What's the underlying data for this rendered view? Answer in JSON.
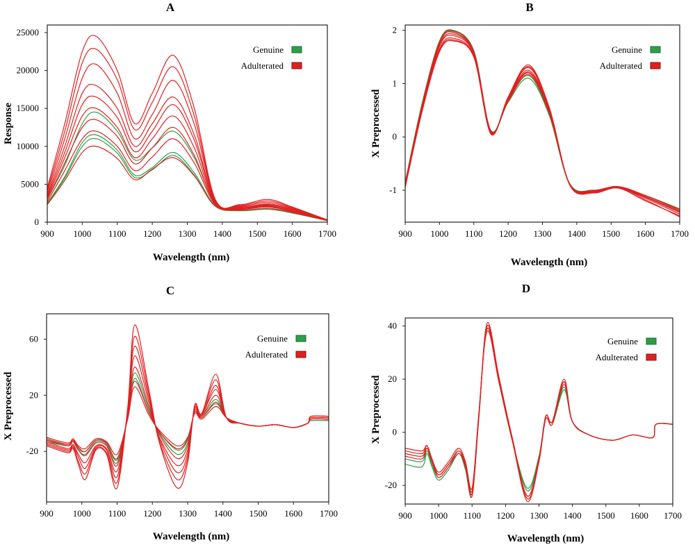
{
  "colors": {
    "genuine": "#2e9e48",
    "adulterated": "#e02020",
    "frame": "#222222"
  },
  "legend_labels": {
    "genuine": "Genuine",
    "adulterated": "Adulterated"
  },
  "chart_data": [
    {
      "panel": "A",
      "type": "line",
      "xlabel": "Wavelength (nm)",
      "ylabel": "Response",
      "xlim": [
        900,
        1700
      ],
      "ylim": [
        0,
        26000
      ],
      "x_ticks": [
        900,
        1000,
        1100,
        1200,
        1300,
        1400,
        1500,
        1600,
        1700
      ],
      "y_ticks": [
        0,
        5000,
        10000,
        15000,
        20000,
        25000
      ],
      "grid": false,
      "legend_position": "top-right",
      "x": [
        900,
        950,
        1000,
        1040,
        1100,
        1150,
        1200,
        1260,
        1320,
        1380,
        1450,
        1530,
        1600,
        1700
      ],
      "series": [
        {
          "name": "Genuine",
          "values": [
            2500,
            6000,
            10500,
            11500,
            9500,
            6200,
            7200,
            9200,
            6500,
            2200,
            1600,
            1800,
            1300,
            200
          ]
        },
        {
          "name": "Genuine",
          "values": [
            3000,
            7500,
            13000,
            14500,
            12000,
            8200,
            9800,
            12000,
            8500,
            2500,
            1800,
            2000,
            1400,
            200
          ]
        },
        {
          "name": "Genuine",
          "values": [
            2400,
            5800,
            10000,
            11000,
            9100,
            5900,
            6900,
            8800,
            6200,
            2100,
            1500,
            1700,
            1200,
            200
          ]
        },
        {
          "name": "Adulterated",
          "values": [
            4500,
            13000,
            22500,
            24500,
            20000,
            13000,
            17000,
            22000,
            15000,
            3000,
            2300,
            3000,
            2000,
            300
          ]
        },
        {
          "name": "Adulterated",
          "values": [
            4200,
            12000,
            21000,
            22800,
            18800,
            12200,
            15800,
            20500,
            14000,
            2900,
            2200,
            2800,
            1900,
            300
          ]
        },
        {
          "name": "Adulterated",
          "values": [
            3900,
            11000,
            19000,
            20800,
            17000,
            11000,
            14200,
            18700,
            12900,
            2800,
            2100,
            2600,
            1800,
            300
          ]
        },
        {
          "name": "Adulterated",
          "values": [
            3600,
            10000,
            17000,
            18000,
            15000,
            10000,
            13000,
            16500,
            11500,
            2700,
            2000,
            2400,
            1700,
            250
          ]
        },
        {
          "name": "Adulterated",
          "values": [
            3400,
            9200,
            15500,
            16500,
            13800,
            9300,
            12000,
            15500,
            10800,
            2600,
            1900,
            2300,
            1600,
            250
          ]
        },
        {
          "name": "Adulterated",
          "values": [
            3200,
            8500,
            14000,
            15000,
            12500,
            8500,
            11000,
            14000,
            9800,
            2500,
            1900,
            2200,
            1500,
            250
          ]
        },
        {
          "name": "Adulterated",
          "values": [
            3000,
            7800,
            12500,
            13500,
            11300,
            7700,
            9800,
            12500,
            8800,
            2400,
            1800,
            2100,
            1400,
            200
          ]
        },
        {
          "name": "Adulterated",
          "values": [
            2700,
            6800,
            11000,
            12000,
            10000,
            6800,
            8600,
            11000,
            7800,
            2300,
            1700,
            2000,
            1400,
            200
          ]
        },
        {
          "name": "Adulterated",
          "values": [
            2300,
            5500,
            9200,
            10000,
            8400,
            5600,
            7000,
            8500,
            6100,
            2100,
            1600,
            1800,
            1300,
            200
          ]
        }
      ]
    },
    {
      "panel": "B",
      "type": "line",
      "xlabel": "Wavelength (nm)",
      "ylabel": "X Preprocessed",
      "xlim": [
        900,
        1700
      ],
      "ylim": [
        -1.6,
        2.1
      ],
      "x_ticks": [
        900,
        1000,
        1100,
        1200,
        1300,
        1400,
        1500,
        1600,
        1700
      ],
      "y_ticks": [
        -1,
        0,
        1,
        2
      ],
      "grid": false,
      "legend_position": "top-right",
      "x": [
        900,
        950,
        1000,
        1040,
        1100,
        1150,
        1200,
        1260,
        1320,
        1380,
        1450,
        1520,
        1600,
        1700
      ],
      "series": [
        {
          "name": "Genuine",
          "values": [
            -0.9,
            0.6,
            1.75,
            1.98,
            1.6,
            0.1,
            0.65,
            1.1,
            0.4,
            -0.9,
            -1.02,
            -0.95,
            -1.1,
            -1.35
          ]
        },
        {
          "name": "Genuine",
          "values": [
            -0.85,
            0.65,
            1.8,
            2.0,
            1.62,
            0.12,
            0.68,
            1.15,
            0.42,
            -0.88,
            -1.0,
            -0.96,
            -1.12,
            -1.4
          ]
        },
        {
          "name": "Adulterated",
          "values": [
            -0.95,
            0.5,
            1.6,
            1.8,
            1.5,
            0.05,
            0.75,
            1.35,
            0.55,
            -0.9,
            -1.05,
            -0.95,
            -1.18,
            -1.5
          ]
        },
        {
          "name": "Adulterated",
          "values": [
            -0.92,
            0.52,
            1.65,
            1.85,
            1.52,
            0.07,
            0.73,
            1.3,
            0.52,
            -0.9,
            -1.04,
            -0.95,
            -1.15,
            -1.45
          ]
        },
        {
          "name": "Adulterated",
          "values": [
            -0.9,
            0.55,
            1.7,
            1.9,
            1.55,
            0.08,
            0.72,
            1.25,
            0.5,
            -0.9,
            -1.03,
            -0.95,
            -1.13,
            -1.42
          ]
        },
        {
          "name": "Adulterated",
          "values": [
            -0.9,
            0.58,
            1.72,
            1.93,
            1.57,
            0.09,
            0.7,
            1.22,
            0.48,
            -0.9,
            -1.02,
            -0.94,
            -1.12,
            -1.4
          ]
        },
        {
          "name": "Adulterated",
          "values": [
            -0.88,
            0.6,
            1.76,
            1.96,
            1.58,
            0.1,
            0.69,
            1.2,
            0.46,
            -0.9,
            -1.01,
            -0.94,
            -1.1,
            -1.38
          ]
        },
        {
          "name": "Adulterated",
          "values": [
            -0.87,
            0.62,
            1.78,
            1.99,
            1.6,
            0.11,
            0.67,
            1.17,
            0.44,
            -0.89,
            -1.0,
            -0.93,
            -1.1,
            -1.36
          ]
        },
        {
          "name": "Adulterated",
          "values": [
            -0.94,
            0.5,
            1.62,
            1.82,
            1.5,
            0.06,
            0.74,
            1.32,
            0.54,
            -0.91,
            -1.05,
            -0.96,
            -1.2,
            -1.48
          ]
        }
      ]
    },
    {
      "panel": "C",
      "type": "line",
      "xlabel": "Wavelength (nm)",
      "ylabel": "X Preprocessed",
      "xlim": [
        900,
        1700
      ],
      "ylim": [
        -56,
        78
      ],
      "x_ticks": [
        900,
        1000,
        1100,
        1200,
        1300,
        1400,
        1500,
        1600,
        1700
      ],
      "y_ticks": [
        -20,
        20,
        60
      ],
      "grid": false,
      "legend_position": "top-right",
      "x": [
        900,
        960,
        975,
        990,
        1010,
        1040,
        1070,
        1100,
        1130,
        1150,
        1190,
        1220,
        1270,
        1300,
        1320,
        1340,
        1380,
        1410,
        1450,
        1500,
        1550,
        1600,
        1640,
        1650,
        1700
      ],
      "series": [
        {
          "name": "Genuine",
          "values": [
            -12,
            -15,
            -12,
            -18,
            -20,
            -12,
            -14,
            -26,
            4,
            32,
            8,
            -6,
            -19,
            -12,
            8,
            4,
            14,
            4,
            0,
            -2,
            -1,
            -3,
            0,
            2,
            2
          ]
        },
        {
          "name": "Genuine",
          "values": [
            -13,
            -16,
            -13,
            -19,
            -22,
            -13,
            -15,
            -28,
            6,
            36,
            10,
            -7,
            -22,
            -14,
            9,
            5,
            17,
            4,
            0,
            -2,
            -1,
            -3,
            0,
            2,
            2
          ]
        },
        {
          "name": "Adulterated",
          "values": [
            -10,
            -14,
            -11,
            -16,
            -18,
            -11,
            -13,
            -22,
            3,
            26,
            6,
            -5,
            -16,
            -10,
            7,
            3,
            12,
            4,
            0,
            -2,
            -1,
            -3,
            0,
            3,
            3
          ]
        },
        {
          "name": "Adulterated",
          "values": [
            -12,
            -16,
            -13,
            -19,
            -23,
            -14,
            -16,
            -30,
            6,
            40,
            12,
            -8,
            -25,
            -16,
            9,
            5,
            20,
            4,
            0,
            -2,
            -1,
            -3,
            0,
            3,
            3
          ]
        },
        {
          "name": "Adulterated",
          "values": [
            -13,
            -18,
            -15,
            -22,
            -28,
            -16,
            -18,
            -34,
            8,
            48,
            15,
            -10,
            -30,
            -19,
            10,
            6,
            24,
            4,
            0,
            -2,
            -1,
            -3,
            0,
            4,
            4
          ]
        },
        {
          "name": "Adulterated",
          "values": [
            -14,
            -19,
            -16,
            -24,
            -32,
            -17,
            -19,
            -38,
            9,
            55,
            18,
            -11,
            -35,
            -22,
            11,
            6,
            27,
            4,
            0,
            -2,
            -1,
            -3,
            0,
            4,
            4
          ]
        },
        {
          "name": "Adulterated",
          "values": [
            -15,
            -20,
            -17,
            -27,
            -36,
            -18,
            -21,
            -42,
            10,
            62,
            21,
            -13,
            -40,
            -25,
            12,
            7,
            31,
            4,
            0,
            -2,
            -1,
            -3,
            0,
            5,
            5
          ]
        },
        {
          "name": "Adulterated",
          "values": [
            -16,
            -21,
            -18,
            -29,
            -40,
            -19,
            -22,
            -46,
            11,
            70,
            24,
            -14,
            -46,
            -28,
            13,
            7,
            35,
            4,
            0,
            -2,
            -1,
            -3,
            0,
            5,
            5
          ]
        },
        {
          "name": "Adulterated",
          "values": [
            -11,
            -15,
            -12,
            -17,
            -20,
            -12,
            -14,
            -25,
            4,
            30,
            8,
            -6,
            -18,
            -11,
            8,
            4,
            15,
            4,
            0,
            -2,
            -1,
            -3,
            0,
            3,
            3
          ]
        }
      ]
    },
    {
      "panel": "D",
      "type": "line",
      "xlabel": "Wavelength (nm)",
      "ylabel": "X Preprocessed",
      "xlim": [
        900,
        1700
      ],
      "ylim": [
        -27,
        43
      ],
      "x_ticks": [
        900,
        1000,
        1100,
        1200,
        1300,
        1400,
        1500,
        1600,
        1700
      ],
      "y_ticks": [
        -20,
        0,
        20,
        40
      ],
      "grid": false,
      "legend_position": "top-right",
      "x": [
        900,
        950,
        965,
        980,
        1000,
        1030,
        1060,
        1080,
        1100,
        1120,
        1145,
        1180,
        1220,
        1265,
        1300,
        1320,
        1340,
        1375,
        1400,
        1450,
        1520,
        1580,
        1640,
        1650,
        1700
      ],
      "series": [
        {
          "name": "Genuine",
          "values": [
            -12,
            -13,
            -8,
            -13,
            -18,
            -14,
            -8,
            -14,
            -24,
            5,
            40,
            20,
            -3,
            -22,
            -10,
            5,
            3,
            16,
            4,
            -1,
            -3,
            -1,
            -2,
            3,
            3
          ]
        },
        {
          "name": "Genuine",
          "values": [
            -10,
            -11,
            -7,
            -12,
            -17,
            -13,
            -7,
            -13,
            -23,
            6,
            39,
            19,
            -3,
            -21,
            -9,
            6,
            4,
            17,
            4,
            -1,
            -3,
            -1,
            -2,
            3,
            3
          ]
        },
        {
          "name": "Adulterated",
          "values": [
            -8,
            -9,
            -6,
            -11,
            -16,
            -12,
            -7,
            -12,
            -22,
            6,
            38,
            19,
            -3,
            -24,
            -10,
            6,
            4,
            19,
            4,
            -1,
            -3,
            -1,
            -2,
            3,
            3
          ]
        },
        {
          "name": "Adulterated",
          "values": [
            -7,
            -8,
            -5,
            -10,
            -15,
            -11,
            -6,
            -11,
            -21,
            7,
            39,
            20,
            -2,
            -25,
            -11,
            6,
            4,
            20,
            4,
            -1,
            -3,
            -1,
            -2,
            3,
            3
          ]
        },
        {
          "name": "Adulterated",
          "values": [
            -9,
            -10,
            -6,
            -11,
            -17,
            -13,
            -8,
            -13,
            -24,
            5,
            40,
            20,
            -3,
            -26,
            -11,
            5,
            3,
            18,
            4,
            -1,
            -3,
            -1,
            -2,
            3,
            3
          ]
        },
        {
          "name": "Adulterated",
          "values": [
            -6,
            -7,
            -5,
            -10,
            -16,
            -12,
            -7,
            -12,
            -23,
            6,
            41,
            21,
            -2,
            -24,
            -10,
            6,
            4,
            19,
            4,
            -1,
            -3,
            -1,
            -2,
            3,
            3
          ]
        }
      ]
    }
  ],
  "panels": [
    {
      "id": "A",
      "label": "A",
      "ylabel": "Response",
      "xlabel": "Wavelength (nm)"
    },
    {
      "id": "B",
      "label": "B",
      "ylabel": "X Preprocessed",
      "xlabel": "Wavelength (nm)"
    },
    {
      "id": "C",
      "label": "C",
      "ylabel": "X Preprocessed",
      "xlabel": "Wavelength (nm)"
    },
    {
      "id": "D",
      "label": "D",
      "ylabel": "X Preprocessed",
      "xlabel": "Wavelength (nm)"
    }
  ]
}
